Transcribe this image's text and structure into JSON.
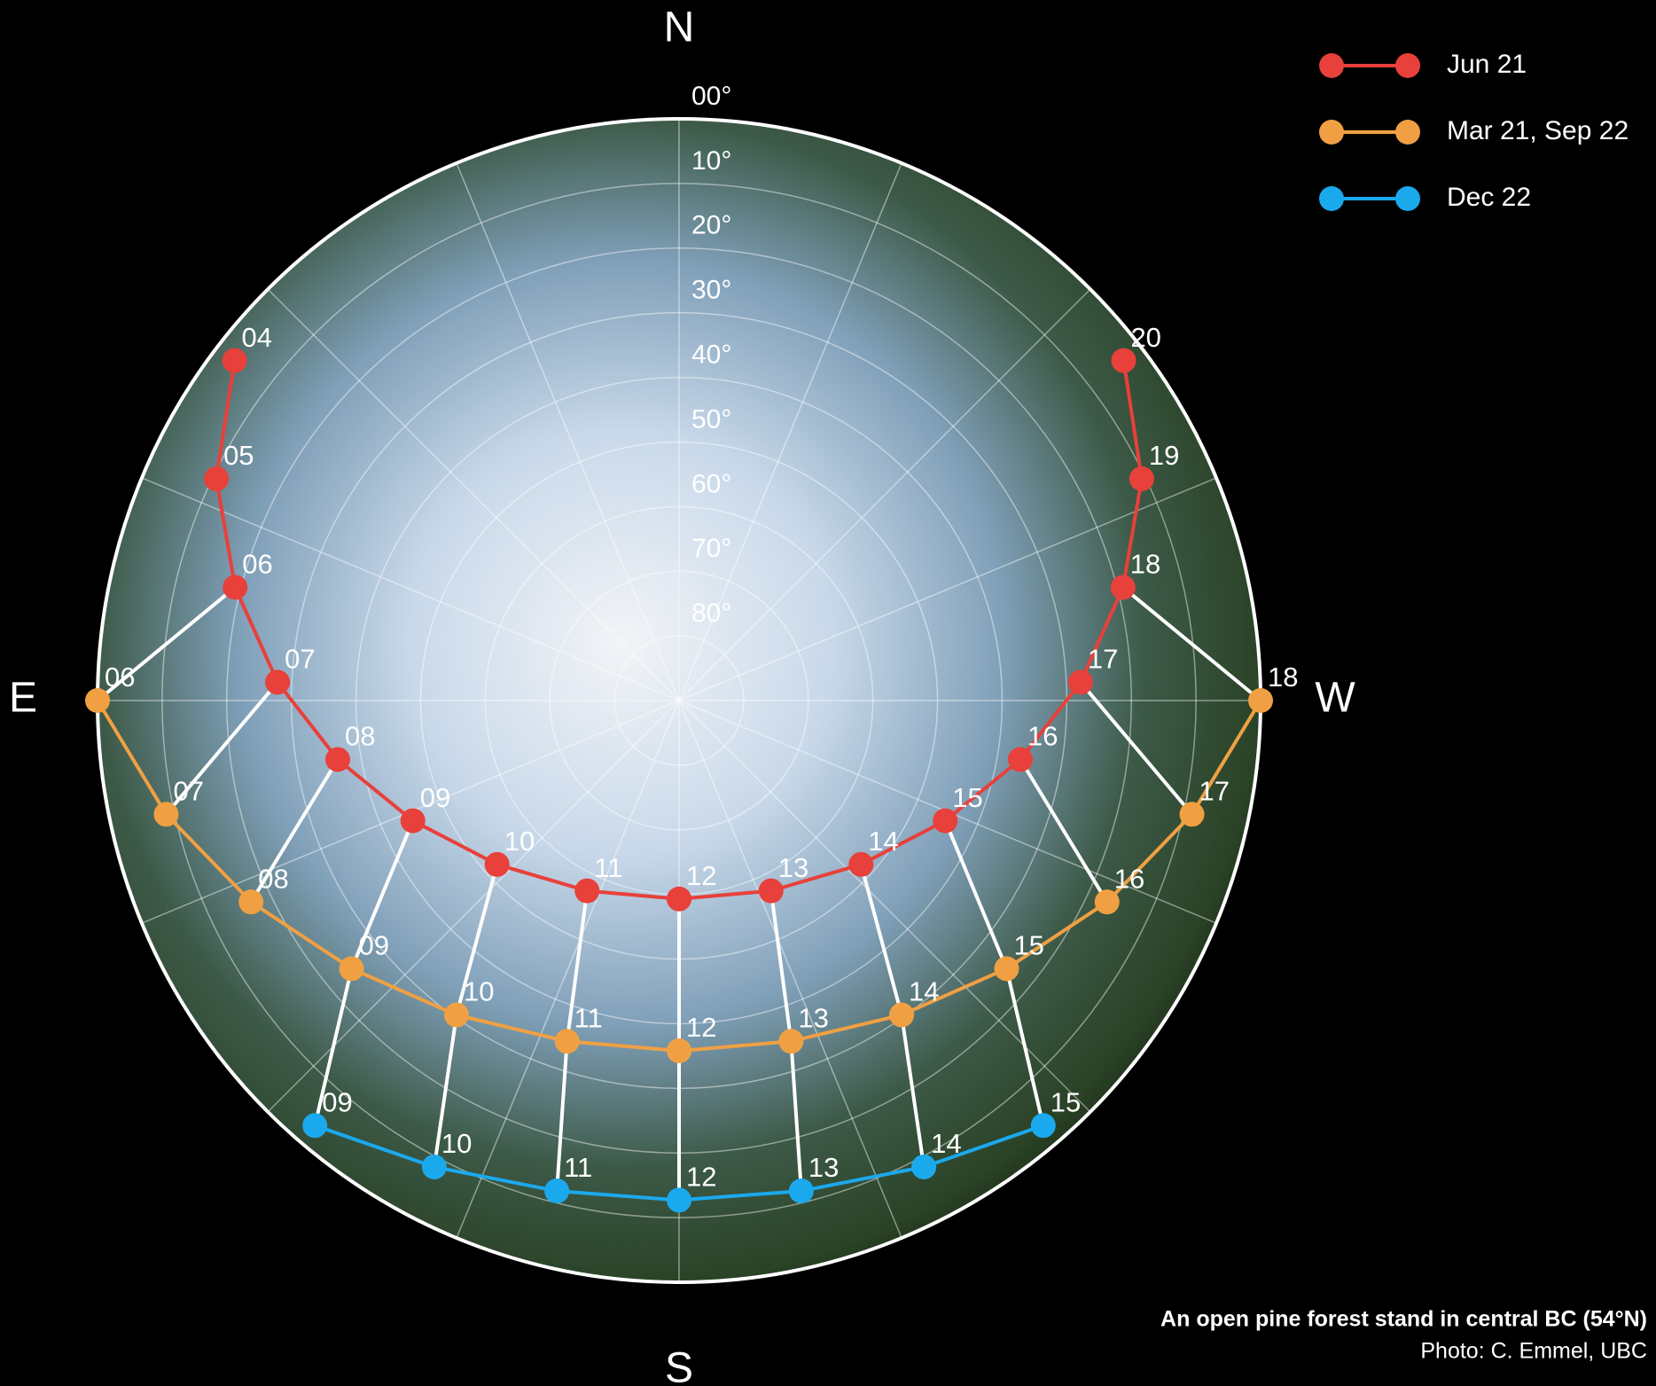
{
  "chart_data": {
    "type": "sunpath",
    "directions": [
      "N",
      "E",
      "S",
      "W"
    ],
    "rlim": [
      0,
      90
    ],
    "rticks": [
      {
        "value": 0,
        "label": "00°"
      },
      {
        "value": 10,
        "label": "10°"
      },
      {
        "value": 20,
        "label": "20°"
      },
      {
        "value": 30,
        "label": "30°"
      },
      {
        "value": 40,
        "label": "40°"
      },
      {
        "value": 50,
        "label": "50°"
      },
      {
        "value": 60,
        "label": "60°"
      },
      {
        "value": 70,
        "label": "70°"
      },
      {
        "value": 80,
        "label": "80°"
      }
    ],
    "azimuth_grid": [
      0,
      22.5,
      45,
      67.5,
      90,
      112.5,
      135,
      157.5,
      180,
      202.5,
      225,
      247.5,
      270,
      292.5,
      315,
      337.5
    ],
    "series": [
      {
        "name": "Jun 21",
        "color": "#e8403a",
        "hours": [
          "04",
          "05",
          "06",
          "07",
          "08",
          "09",
          "10",
          "11",
          "12",
          "13",
          "14",
          "15",
          "16",
          "17",
          "18",
          "19",
          "20"
        ],
        "azimuth": [
          52.6,
          64.4,
          75.7,
          87.4,
          99.8,
          114.3,
          132,
          154.2,
          180,
          205.8,
          228,
          245.7,
          260.2,
          272.6,
          284.3,
          295.6,
          307.4
        ],
        "altitude": [
          3.4,
          10.6,
          19.1,
          27.8,
          36.4,
          44.8,
          52.1,
          57.3,
          59.3,
          57.3,
          52.1,
          44.8,
          36.4,
          27.8,
          19.1,
          10.6,
          3.4
        ]
      },
      {
        "name": "Mar 21, Sep 22",
        "color": "#f0a043",
        "hours": [
          "06",
          "07",
          "08",
          "09",
          "10",
          "11",
          "12",
          "13",
          "14",
          "15",
          "16",
          "17",
          "18"
        ],
        "azimuth": [
          90,
          102.5,
          115.2,
          129.3,
          144.7,
          161.8,
          180,
          198.2,
          215.3,
          230.7,
          244.8,
          257.5,
          270
        ],
        "altitude": [
          0,
          8.7,
          16.8,
          24.5,
          30.4,
          34.5,
          35.8,
          34.5,
          30.4,
          24.5,
          16.8,
          8.7,
          0
        ]
      },
      {
        "name": "Dec 22",
        "color": "#1ba9ee",
        "hours": [
          "09",
          "10",
          "11",
          "12",
          "13",
          "14",
          "15"
        ],
        "azimuth": [
          139.4,
          152.3,
          166,
          180,
          194,
          207.7,
          220.6
        ],
        "altitude": [
          3.4,
          8.5,
          11.8,
          12.7,
          11.8,
          8.5,
          3.4
        ]
      }
    ],
    "caption": "An open pine forest stand in central BC (54°N)",
    "credit": "Photo: C. Emmel, UBC"
  }
}
